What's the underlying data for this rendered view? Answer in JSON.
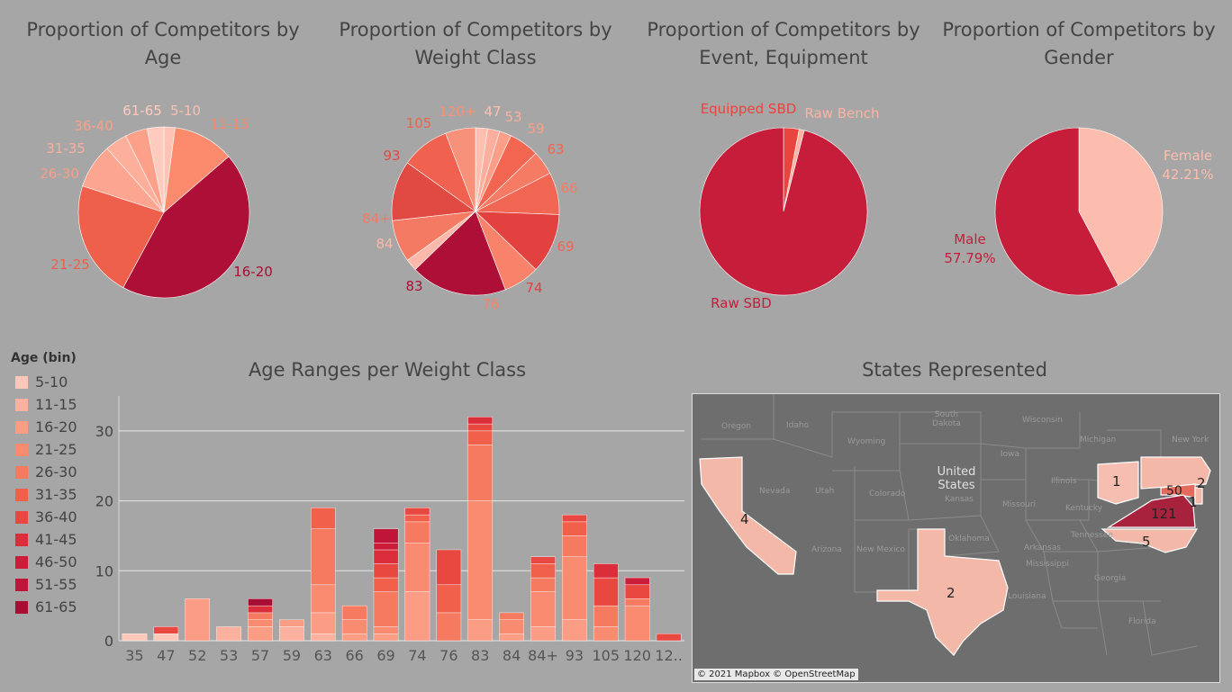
{
  "pies": [
    {
      "title": "Proportion of Competitors by Age",
      "slices": [
        {
          "label": "5-10",
          "value": 2
        },
        {
          "label": "11-15",
          "value": 11
        },
        {
          "label": "16-20",
          "value": 42
        },
        {
          "label": "21-25",
          "value": 21
        },
        {
          "label": "26-30",
          "value": 8
        },
        {
          "label": "31-35",
          "value": 4
        },
        {
          "label": "36-40",
          "value": 4
        },
        {
          "label": "61-65",
          "value": 3
        }
      ],
      "colors": [
        "#fdc3b4",
        "#fb8b6c",
        "#ad0f36",
        "#ef604c",
        "#fca590",
        "#fcb09c",
        "#fca08a",
        "#feccbe"
      ]
    },
    {
      "title": "Proportion of Competitors by Weight Class",
      "slices": [
        {
          "label": "47",
          "value": 2
        },
        {
          "label": "53",
          "value": 2
        },
        {
          "label": "59",
          "value": 2
        },
        {
          "label": "63",
          "value": 5
        },
        {
          "label": "66",
          "value": 4
        },
        {
          "label": "69",
          "value": 7
        },
        {
          "label": "74",
          "value": 10
        },
        {
          "label": "76",
          "value": 6
        },
        {
          "label": "83",
          "value": 16
        },
        {
          "label": "84",
          "value": 2
        },
        {
          "label": "84+",
          "value": 7
        },
        {
          "label": "93",
          "value": 10
        },
        {
          "label": "105",
          "value": 8
        },
        {
          "label": "120+",
          "value": 5
        }
      ],
      "colors": [
        "#fdbfb0",
        "#fcaf9e",
        "#fb9f89",
        "#f26550",
        "#f57b65",
        "#f06653",
        "#e3413f",
        "#f8836a",
        "#ad0f36",
        "#fcb8a8",
        "#f47a64",
        "#e04a43",
        "#f0624f",
        "#f7917a"
      ]
    },
    {
      "title": "Proportion of Competitors by Event, Equipment",
      "slices": [
        {
          "label": "Equipped SBD",
          "value": 3
        },
        {
          "label": "Raw Bench",
          "value": 1
        },
        {
          "label": "Raw SBD",
          "value": 96
        }
      ],
      "colors": [
        "#e8453e",
        "#fbb4a3",
        "#c51d3a"
      ]
    },
    {
      "title": "Proportion of Competitors by Gender",
      "slices": [
        {
          "label": "Female",
          "value": 42.21,
          "pct": "42.21%"
        },
        {
          "label": "Male",
          "value": 57.79,
          "pct": "57.79%"
        }
      ],
      "colors": [
        "#fdbdae",
        "#c51d3a"
      ]
    }
  ],
  "legend": {
    "title": "Age (bin)",
    "items": [
      {
        "label": "5-10",
        "color": "#fdc8ba"
      },
      {
        "label": "11-15",
        "color": "#fcb19f"
      },
      {
        "label": "16-20",
        "color": "#fb9c85"
      },
      {
        "label": "21-25",
        "color": "#f88b70"
      },
      {
        "label": "26-30",
        "color": "#f57a60"
      },
      {
        "label": "31-35",
        "color": "#f0604b"
      },
      {
        "label": "36-40",
        "color": "#e94840"
      },
      {
        "label": "41-45",
        "color": "#dc2d3b"
      },
      {
        "label": "46-50",
        "color": "#cb1c3a"
      },
      {
        "label": "51-55",
        "color": "#bf1538"
      },
      {
        "label": "61-65",
        "color": "#a80d33"
      }
    ]
  },
  "chart_data": {
    "type": "bar",
    "stacked": true,
    "title": "Age Ranges per Weight Class",
    "categories": [
      "35",
      "47",
      "52",
      "53",
      "57",
      "59",
      "63",
      "66",
      "69",
      "74",
      "76",
      "83",
      "84",
      "84+",
      "93",
      "105",
      "120",
      "12.."
    ],
    "ylim": [
      0,
      35
    ],
    "yticks": [
      0,
      10,
      20,
      30
    ],
    "grid": true,
    "series": [
      {
        "name": "5-10",
        "values": [
          1,
          1,
          0,
          0,
          0,
          0,
          0,
          0,
          0,
          0,
          0,
          0,
          0,
          0,
          0,
          0,
          0,
          0
        ]
      },
      {
        "name": "11-15",
        "values": [
          0,
          0,
          0,
          2,
          0,
          2,
          1,
          0,
          0,
          0,
          0,
          0,
          0,
          0,
          0,
          0,
          0,
          0
        ]
      },
      {
        "name": "16-20",
        "values": [
          0,
          0,
          6,
          0,
          2,
          1,
          3,
          1,
          1,
          7,
          0,
          3,
          1,
          2,
          3,
          0,
          0,
          0
        ]
      },
      {
        "name": "21-25",
        "values": [
          0,
          0,
          0,
          0,
          1,
          0,
          4,
          2,
          1,
          7,
          0,
          17,
          2,
          5,
          9,
          2,
          5,
          0
        ]
      },
      {
        "name": "26-30",
        "values": [
          0,
          0,
          0,
          0,
          1,
          0,
          8,
          2,
          5,
          3,
          4,
          8,
          1,
          2,
          3,
          3,
          1,
          0
        ]
      },
      {
        "name": "31-35",
        "values": [
          0,
          0,
          0,
          0,
          0,
          0,
          3,
          0,
          2,
          1,
          4,
          2,
          0,
          2,
          2,
          0,
          0,
          0
        ]
      },
      {
        "name": "36-40",
        "values": [
          0,
          1,
          0,
          0,
          0,
          0,
          0,
          0,
          2,
          1,
          5,
          1,
          0,
          1,
          1,
          4,
          2,
          1
        ]
      },
      {
        "name": "41-45",
        "values": [
          0,
          0,
          0,
          0,
          1,
          0,
          0,
          0,
          2,
          0,
          0,
          1,
          0,
          0,
          0,
          2,
          0,
          0
        ]
      },
      {
        "name": "46-50",
        "values": [
          0,
          0,
          0,
          0,
          0,
          0,
          0,
          0,
          1,
          0,
          0,
          0,
          0,
          0,
          0,
          0,
          1,
          0
        ]
      },
      {
        "name": "51-55",
        "values": [
          0,
          0,
          0,
          0,
          0,
          0,
          0,
          0,
          2,
          0,
          0,
          0,
          0,
          0,
          0,
          0,
          0,
          0
        ]
      },
      {
        "name": "61-65",
        "values": [
          0,
          0,
          0,
          0,
          1,
          0,
          0,
          0,
          0,
          0,
          0,
          0,
          0,
          0,
          0,
          0,
          0,
          0
        ]
      }
    ]
  },
  "map": {
    "title": "States Represented",
    "attribution": "© 2021 Mapbox © OpenStreetMap",
    "country_label": "United States",
    "state_labels": [
      "Oregon",
      "Idaho",
      "Wyoming",
      "South Dakota",
      "Wisconsin",
      "Michigan",
      "New York",
      "Nevada",
      "Utah",
      "Colorado",
      "Kansas",
      "Iowa",
      "Illinois",
      "Missouri",
      "Kentucky",
      "Arizona",
      "New Mexico",
      "Oklahoma",
      "Arkansas",
      "Tennessee",
      "Mississippi",
      "Georgia",
      "Louisiana",
      "Florida"
    ],
    "counts": [
      {
        "state": "California",
        "count": "4"
      },
      {
        "state": "Texas",
        "count": "2"
      },
      {
        "state": "Ohio",
        "count": "1"
      },
      {
        "state": "Pennsylvania",
        "count": "2"
      },
      {
        "state": "Maryland",
        "count": "50"
      },
      {
        "state": "Delaware",
        "count": "1"
      },
      {
        "state": "Virginia",
        "count": "121"
      },
      {
        "state": "North Carolina",
        "count": "5"
      }
    ]
  }
}
